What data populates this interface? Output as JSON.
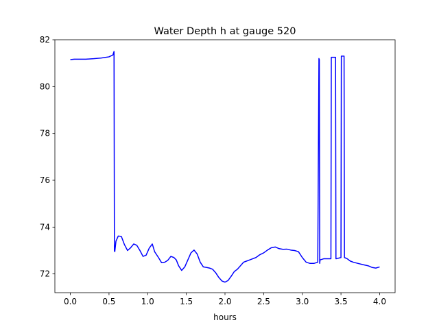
{
  "chart_data": {
    "type": "line",
    "title": "Water Depth h at gauge 520",
    "xlabel": "hours",
    "ylabel": "",
    "xlim": [
      -0.2,
      4.2
    ],
    "ylim": [
      71.2,
      82
    ],
    "grid": false,
    "x_ticks": [
      0.0,
      0.5,
      1.0,
      1.5,
      2.0,
      2.5,
      3.0,
      3.5,
      4.0
    ],
    "x_tick_labels": [
      "0.0",
      "0.5",
      "1.0",
      "1.5",
      "2.0",
      "2.5",
      "3.0",
      "3.5",
      "4.0"
    ],
    "y_ticks": [
      72,
      74,
      76,
      78,
      80,
      82
    ],
    "y_tick_labels": [
      "72",
      "74",
      "76",
      "78",
      "80",
      "82"
    ],
    "colors": {
      "line": "#0000ff",
      "axes": "#000000"
    },
    "series": [
      {
        "x": [
          0.0,
          0.05,
          0.1,
          0.2,
          0.3,
          0.4,
          0.5,
          0.55,
          0.565,
          0.57,
          0.575,
          0.59,
          0.62,
          0.66,
          0.7,
          0.74,
          0.78,
          0.82,
          0.86,
          0.9,
          0.94,
          0.98,
          1.02,
          1.06,
          1.09,
          1.11,
          1.14,
          1.18,
          1.22,
          1.26,
          1.3,
          1.34,
          1.37,
          1.4,
          1.44,
          1.48,
          1.52,
          1.56,
          1.6,
          1.64,
          1.68,
          1.72,
          1.76,
          1.8,
          1.84,
          1.88,
          1.92,
          1.96,
          2.0,
          2.04,
          2.08,
          2.12,
          2.16,
          2.2,
          2.24,
          2.28,
          2.32,
          2.36,
          2.4,
          2.45,
          2.5,
          2.55,
          2.6,
          2.65,
          2.7,
          2.75,
          2.8,
          2.85,
          2.9,
          2.95,
          3.0,
          3.05,
          3.1,
          3.15,
          3.2,
          3.215,
          3.22,
          3.225,
          3.23,
          3.28,
          3.32,
          3.37,
          3.375,
          3.43,
          3.435,
          3.44,
          3.5,
          3.505,
          3.54,
          3.545,
          3.58,
          3.62,
          3.66,
          3.72,
          3.78,
          3.85,
          3.9,
          3.95,
          4.0
        ],
        "y": [
          81.15,
          81.17,
          81.17,
          81.17,
          81.19,
          81.22,
          81.27,
          81.35,
          81.5,
          73.0,
          72.95,
          73.4,
          73.62,
          73.6,
          73.25,
          73.0,
          73.12,
          73.28,
          73.22,
          73.0,
          72.75,
          72.8,
          73.1,
          73.28,
          72.95,
          72.85,
          72.7,
          72.48,
          72.5,
          72.58,
          72.75,
          72.7,
          72.6,
          72.35,
          72.15,
          72.3,
          72.6,
          72.9,
          73.02,
          72.85,
          72.5,
          72.3,
          72.28,
          72.25,
          72.2,
          72.05,
          71.85,
          71.7,
          71.65,
          71.72,
          71.9,
          72.1,
          72.2,
          72.35,
          72.5,
          72.55,
          72.6,
          72.65,
          72.7,
          72.82,
          72.9,
          73.02,
          73.12,
          73.15,
          73.08,
          73.05,
          73.06,
          73.02,
          73.0,
          72.95,
          72.7,
          72.5,
          72.45,
          72.45,
          72.5,
          81.2,
          81.15,
          72.45,
          72.6,
          72.65,
          72.65,
          72.65,
          81.25,
          81.25,
          72.65,
          72.65,
          72.7,
          81.3,
          81.3,
          72.7,
          72.65,
          72.55,
          72.5,
          72.45,
          72.4,
          72.35,
          72.28,
          72.25,
          72.3
        ]
      }
    ]
  }
}
